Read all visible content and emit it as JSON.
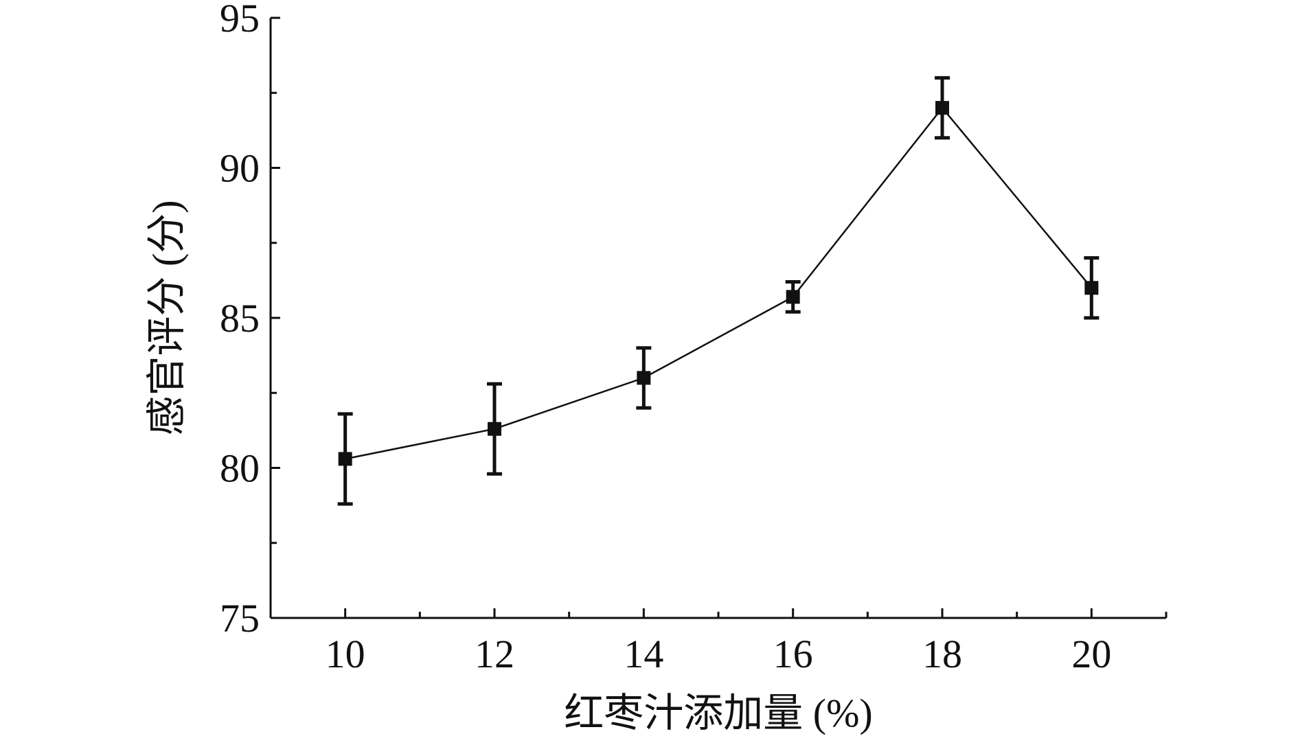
{
  "chart_data": {
    "type": "line",
    "title": "",
    "xlabel": "红枣汁添加量 (%)",
    "ylabel": "感官评分 (分)",
    "x": [
      10,
      12,
      14,
      16,
      18,
      20
    ],
    "xlim": [
      9,
      21
    ],
    "ylim": [
      75,
      95
    ],
    "xticks": [
      10,
      12,
      14,
      16,
      18,
      20
    ],
    "yticks": [
      75,
      80,
      85,
      90,
      95
    ],
    "series": [
      {
        "values": [
          80.3,
          81.3,
          83.0,
          85.7,
          92.0,
          86.0
        ],
        "error": [
          1.5,
          1.5,
          1.0,
          0.5,
          1.0,
          1.0
        ],
        "color": "#111111",
        "marker": "square"
      }
    ],
    "grid": false,
    "legend": "none"
  }
}
